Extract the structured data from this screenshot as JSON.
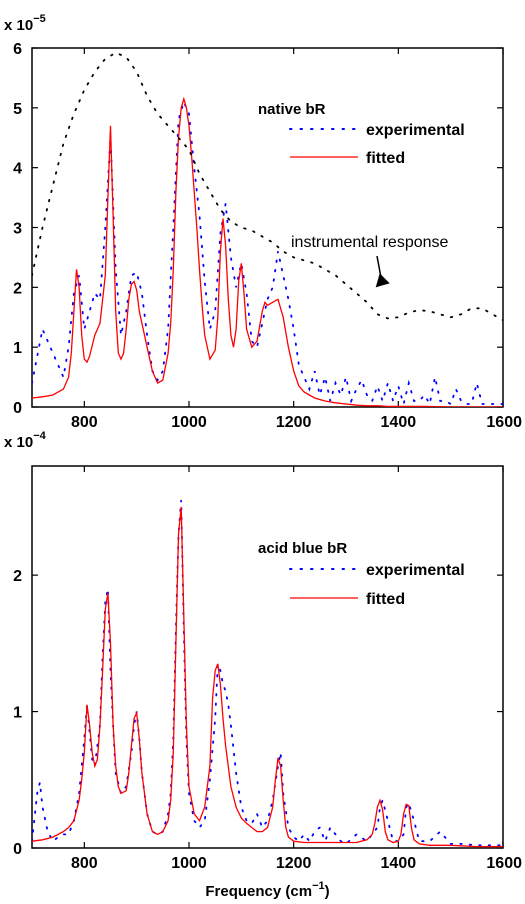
{
  "chart_data": [
    {
      "type": "line",
      "title": "native bR",
      "multiplier": "x 10",
      "multiplier_exp": "−5",
      "xlim": [
        700,
        1600
      ],
      "ylim": [
        0,
        6
      ],
      "xticks": [
        800,
        1000,
        1200,
        1400,
        1600
      ],
      "yticks": [
        0,
        1,
        2,
        3,
        4,
        5,
        6
      ],
      "xlabel": "",
      "ylabel": "",
      "grid": false,
      "legend_position": "top-right",
      "annotation": {
        "text": "instrumental response",
        "x": 1330,
        "y": 1.9
      },
      "series": [
        {
          "name": "experimental",
          "color": "#0000ff",
          "style": "dotted",
          "x": [
            700,
            720,
            740,
            760,
            770,
            780,
            790,
            800,
            810,
            820,
            830,
            840,
            850,
            860,
            870,
            880,
            890,
            900,
            910,
            920,
            930,
            940,
            950,
            960,
            970,
            980,
            990,
            1000,
            1010,
            1020,
            1030,
            1040,
            1050,
            1060,
            1070,
            1080,
            1090,
            1100,
            1110,
            1120,
            1130,
            1140,
            1150,
            1160,
            1170,
            1180,
            1190,
            1200,
            1210,
            1220,
            1230,
            1240,
            1250,
            1260,
            1270,
            1280,
            1290,
            1300,
            1310,
            1320,
            1330,
            1340,
            1350,
            1360,
            1370,
            1380,
            1390,
            1400,
            1410,
            1420,
            1430,
            1440,
            1450,
            1460,
            1470,
            1480,
            1490,
            1500,
            1510,
            1520,
            1530,
            1540,
            1550,
            1560,
            1580,
            1600
          ],
          "y": [
            0.4,
            1.3,
            0.9,
            0.5,
            1.0,
            1.9,
            2.2,
            1.3,
            1.6,
            1.9,
            1.8,
            3.0,
            4.5,
            2.3,
            1.2,
            1.6,
            2.2,
            2.25,
            1.9,
            1.2,
            0.6,
            0.45,
            0.6,
            1.3,
            3.0,
            4.8,
            5.1,
            4.9,
            4.0,
            3.2,
            2.1,
            1.3,
            1.6,
            2.9,
            3.4,
            2.5,
            2.0,
            2.4,
            1.9,
            1.1,
            1.0,
            1.4,
            1.8,
            2.0,
            2.6,
            2.2,
            1.8,
            1.3,
            0.7,
            0.5,
            0.3,
            0.6,
            0.2,
            0.5,
            0.1,
            0.4,
            0.2,
            0.5,
            0.1,
            0.3,
            0.45,
            0.2,
            0.1,
            0.35,
            0.1,
            0.4,
            0.1,
            0.35,
            0.05,
            0.4,
            0.1,
            0.1,
            0.2,
            0.05,
            0.5,
            0.1,
            0.1,
            0.05,
            0.3,
            0.1,
            0.05,
            0.05,
            0.4,
            0.05,
            0.05,
            0.05
          ]
        },
        {
          "name": "fitted",
          "color": "#ff0000",
          "style": "solid",
          "x": [
            700,
            720,
            740,
            760,
            770,
            775,
            780,
            785,
            790,
            795,
            800,
            805,
            810,
            820,
            830,
            840,
            845,
            850,
            855,
            860,
            865,
            870,
            875,
            880,
            885,
            890,
            895,
            900,
            905,
            910,
            920,
            930,
            940,
            950,
            960,
            965,
            970,
            975,
            980,
            985,
            990,
            995,
            1000,
            1005,
            1010,
            1015,
            1020,
            1025,
            1030,
            1040,
            1050,
            1055,
            1060,
            1065,
            1070,
            1075,
            1080,
            1085,
            1090,
            1095,
            1100,
            1105,
            1110,
            1120,
            1130,
            1140,
            1145,
            1150,
            1160,
            1170,
            1180,
            1190,
            1200,
            1210,
            1220,
            1240,
            1260,
            1280,
            1300,
            1320,
            1340,
            1360,
            1380,
            1400,
            1450,
            1500,
            1550,
            1600
          ],
          "y": [
            0.15,
            0.17,
            0.2,
            0.3,
            0.5,
            0.9,
            1.6,
            2.3,
            2.0,
            1.2,
            0.8,
            0.75,
            0.85,
            1.2,
            1.4,
            2.2,
            3.5,
            4.7,
            3.2,
            1.6,
            0.9,
            0.8,
            0.9,
            1.3,
            1.8,
            2.05,
            2.1,
            1.95,
            1.6,
            1.4,
            1.0,
            0.6,
            0.4,
            0.45,
            0.9,
            1.4,
            2.3,
            3.6,
            4.5,
            5.0,
            5.15,
            5.0,
            4.7,
            4.2,
            3.6,
            3.0,
            2.3,
            1.7,
            1.2,
            0.8,
            0.95,
            1.5,
            2.6,
            3.15,
            2.7,
            1.8,
            1.2,
            1.0,
            1.3,
            2.1,
            2.4,
            1.9,
            1.3,
            1.0,
            1.1,
            1.6,
            1.75,
            1.7,
            1.75,
            1.8,
            1.5,
            1.0,
            0.6,
            0.35,
            0.25,
            0.15,
            0.1,
            0.07,
            0.05,
            0.03,
            0.02,
            0.02,
            0.01,
            0.01,
            0.01,
            0.0,
            0.0,
            0.0
          ]
        },
        {
          "name": "instrumental response",
          "color": "#000000",
          "style": "dotted",
          "x": [
            700,
            720,
            740,
            760,
            780,
            800,
            820,
            840,
            860,
            880,
            900,
            920,
            940,
            960,
            980,
            1000,
            1020,
            1040,
            1060,
            1080,
            1100,
            1120,
            1140,
            1160,
            1180,
            1200,
            1220,
            1240,
            1260,
            1280,
            1300,
            1320,
            1340,
            1360,
            1380,
            1400,
            1420,
            1440,
            1460,
            1480,
            1500,
            1520,
            1540,
            1560,
            1580,
            1600
          ],
          "y": [
            2.2,
            3.0,
            3.7,
            4.4,
            4.9,
            5.3,
            5.6,
            5.82,
            5.92,
            5.85,
            5.6,
            5.2,
            4.9,
            4.7,
            4.5,
            4.3,
            3.9,
            3.6,
            3.3,
            3.1,
            3.0,
            2.95,
            2.85,
            2.75,
            2.6,
            2.5,
            2.45,
            2.4,
            2.3,
            2.2,
            2.05,
            1.9,
            1.75,
            1.55,
            1.48,
            1.5,
            1.58,
            1.62,
            1.6,
            1.55,
            1.5,
            1.55,
            1.65,
            1.65,
            1.55,
            1.45
          ]
        }
      ]
    },
    {
      "type": "line",
      "title": "acid blue bR",
      "multiplier": "x 10",
      "multiplier_exp": "−4",
      "xlim": [
        700,
        1600
      ],
      "ylim": [
        0,
        2.8
      ],
      "xticks": [
        800,
        1000,
        1200,
        1400,
        1600
      ],
      "yticks": [
        0,
        1,
        2
      ],
      "xlabel": "Frequency (cm",
      "xlabel_exp": "−1",
      "xlabel_end": ")",
      "ylabel": "",
      "grid": false,
      "legend_position": "top-right",
      "series": [
        {
          "name": "experimental",
          "color": "#0000ff",
          "style": "dotted",
          "x": [
            700,
            710,
            715,
            720,
            730,
            740,
            750,
            760,
            770,
            780,
            790,
            800,
            805,
            810,
            815,
            820,
            830,
            835,
            840,
            845,
            850,
            855,
            860,
            870,
            880,
            890,
            895,
            900,
            905,
            910,
            920,
            930,
            940,
            950,
            960,
            965,
            970,
            975,
            980,
            985,
            990,
            995,
            1000,
            1010,
            1020,
            1030,
            1040,
            1050,
            1055,
            1060,
            1065,
            1070,
            1075,
            1080,
            1090,
            1100,
            1110,
            1120,
            1130,
            1140,
            1150,
            1160,
            1170,
            1175,
            1180,
            1190,
            1200,
            1210,
            1220,
            1230,
            1240,
            1250,
            1260,
            1270,
            1280,
            1290,
            1300,
            1320,
            1340,
            1360,
            1365,
            1370,
            1380,
            1390,
            1400,
            1410,
            1415,
            1420,
            1430,
            1440,
            1460,
            1480,
            1500,
            1520,
            1550,
            1580,
            1600
          ],
          "y": [
            0.05,
            0.4,
            0.48,
            0.3,
            0.12,
            0.05,
            0.08,
            0.1,
            0.1,
            0.2,
            0.4,
            0.8,
            1.05,
            0.85,
            0.65,
            0.6,
            0.9,
            1.4,
            1.8,
            1.9,
            1.3,
            0.9,
            0.55,
            0.4,
            0.45,
            0.7,
            0.9,
            1.0,
            0.8,
            0.55,
            0.25,
            0.12,
            0.1,
            0.12,
            0.25,
            0.4,
            0.8,
            1.6,
            2.3,
            2.55,
            1.6,
            0.8,
            0.4,
            0.2,
            0.15,
            0.2,
            0.5,
            0.95,
            1.35,
            1.3,
            1.2,
            1.15,
            1.05,
            0.9,
            0.55,
            0.3,
            0.2,
            0.18,
            0.25,
            0.15,
            0.2,
            0.35,
            0.6,
            0.7,
            0.4,
            0.15,
            0.08,
            0.05,
            0.1,
            0.05,
            0.12,
            0.15,
            0.05,
            0.15,
            0.1,
            0.05,
            0.03,
            0.1,
            0.05,
            0.15,
            0.3,
            0.35,
            0.2,
            0.05,
            0.05,
            0.1,
            0.3,
            0.33,
            0.2,
            0.05,
            0.05,
            0.12,
            0.03,
            0.03,
            0.02,
            0.02,
            0.02
          ]
        },
        {
          "name": "fitted",
          "color": "#ff0000",
          "style": "solid",
          "x": [
            700,
            720,
            740,
            760,
            770,
            780,
            790,
            795,
            800,
            805,
            810,
            815,
            820,
            825,
            830,
            835,
            840,
            845,
            850,
            855,
            860,
            865,
            870,
            880,
            885,
            890,
            895,
            900,
            905,
            910,
            920,
            930,
            940,
            950,
            960,
            965,
            970,
            975,
            980,
            985,
            990,
            995,
            1000,
            1010,
            1020,
            1030,
            1040,
            1045,
            1050,
            1055,
            1060,
            1065,
            1070,
            1080,
            1090,
            1100,
            1110,
            1120,
            1130,
            1140,
            1150,
            1160,
            1165,
            1170,
            1175,
            1180,
            1185,
            1190,
            1200,
            1220,
            1240,
            1260,
            1280,
            1300,
            1320,
            1340,
            1350,
            1355,
            1360,
            1365,
            1370,
            1375,
            1380,
            1390,
            1400,
            1405,
            1410,
            1415,
            1420,
            1425,
            1430,
            1440,
            1460,
            1480,
            1500,
            1550,
            1600
          ],
          "y": [
            0.05,
            0.06,
            0.08,
            0.12,
            0.15,
            0.2,
            0.35,
            0.5,
            0.7,
            1.05,
            0.9,
            0.7,
            0.6,
            0.65,
            0.9,
            1.3,
            1.75,
            1.87,
            1.5,
            0.9,
            0.6,
            0.45,
            0.4,
            0.42,
            0.55,
            0.75,
            0.95,
            0.99,
            0.8,
            0.55,
            0.25,
            0.12,
            0.1,
            0.12,
            0.2,
            0.35,
            0.7,
            1.5,
            2.3,
            2.5,
            1.7,
            0.9,
            0.45,
            0.25,
            0.2,
            0.3,
            0.6,
            1.1,
            1.3,
            1.35,
            1.2,
            0.95,
            0.75,
            0.45,
            0.3,
            0.22,
            0.18,
            0.15,
            0.12,
            0.12,
            0.15,
            0.3,
            0.5,
            0.66,
            0.6,
            0.35,
            0.15,
            0.08,
            0.05,
            0.04,
            0.04,
            0.04,
            0.04,
            0.04,
            0.04,
            0.06,
            0.1,
            0.18,
            0.3,
            0.35,
            0.28,
            0.12,
            0.06,
            0.04,
            0.05,
            0.1,
            0.25,
            0.32,
            0.31,
            0.15,
            0.06,
            0.03,
            0.02,
            0.02,
            0.02,
            0.01,
            0.01
          ]
        }
      ]
    }
  ]
}
